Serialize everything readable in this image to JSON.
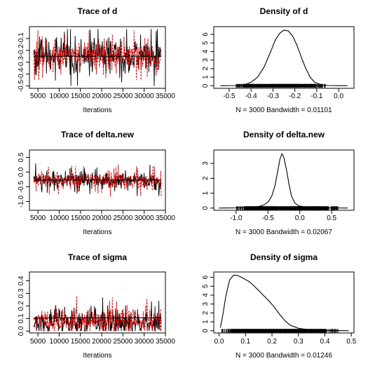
{
  "chart_data": [
    {
      "type": "line",
      "title": "Trace of d",
      "xlabel": "Iterations",
      "ylabel": "",
      "xlim": [
        3000,
        35000
      ],
      "ylim": [
        -0.52,
        0.0
      ],
      "x_ticks": [
        5000,
        10000,
        15000,
        20000,
        25000,
        30000,
        35000
      ],
      "x_tick_labels": [
        "5000",
        "10000",
        "15000",
        "20000",
        "25000",
        "30000",
        "35000"
      ],
      "y_ticks": [
        -0.5,
        -0.4,
        -0.3,
        -0.2,
        -0.1
      ],
      "y_tick_labels": [
        "-0.5",
        "-0.4",
        "-0.3",
        "-0.2",
        "-0.1"
      ],
      "x_range": [
        4000,
        34000
      ],
      "series": [
        {
          "color": "#000000",
          "line_style": "solid",
          "center": -0.25,
          "spread": 0.13,
          "min": -0.5,
          "max": -0.02
        },
        {
          "color": "#e00000",
          "line_style": "dashed",
          "center": -0.25,
          "spread": 0.12,
          "min": -0.45,
          "max": -0.03
        }
      ],
      "smooth_line": {
        "color": "#000000",
        "value": -0.25
      }
    },
    {
      "type": "line",
      "title": "Density of d",
      "xlabel": "N = 3000   Bandwidth = 0.01101",
      "ylabel": "",
      "xlim": [
        -0.57,
        0.07
      ],
      "ylim": [
        -0.3,
        6.9
      ],
      "x_ticks": [
        -0.5,
        -0.4,
        -0.3,
        -0.2,
        -0.1,
        0.0
      ],
      "x_tick_labels": [
        "-0.5",
        "-0.4",
        "-0.3",
        "-0.2",
        "-0.1",
        "0.0"
      ],
      "y_ticks": [
        0,
        1,
        2,
        3,
        4,
        5,
        6
      ],
      "y_tick_labels": [
        "0",
        "1",
        "2",
        "3",
        "4",
        "5",
        "6"
      ],
      "x": [
        -0.54,
        -0.47,
        -0.43,
        -0.4,
        -0.37,
        -0.34,
        -0.31,
        -0.29,
        -0.27,
        -0.25,
        -0.23,
        -0.21,
        -0.19,
        -0.17,
        -0.15,
        -0.13,
        -0.11,
        -0.08,
        -0.05,
        0.04
      ],
      "y": [
        0.0,
        0.03,
        0.12,
        0.4,
        1.0,
        2.2,
        4.0,
        5.3,
        6.1,
        6.5,
        6.4,
        5.8,
        4.7,
        3.3,
        2.0,
        1.0,
        0.4,
        0.12,
        0.03,
        0.0
      ],
      "rug_range": [
        -0.47,
        -0.06
      ]
    },
    {
      "type": "line",
      "title": "Trace of delta.new",
      "xlabel": "Iterations",
      "ylabel": "",
      "xlim": [
        3000,
        35000
      ],
      "ylim": [
        -1.3,
        0.75
      ],
      "x_ticks": [
        5000,
        10000,
        15000,
        20000,
        25000,
        30000,
        35000
      ],
      "x_tick_labels": [
        "5000",
        "10000",
        "15000",
        "20000",
        "25000",
        "30000",
        "35000"
      ],
      "y_ticks": [
        -1.0,
        -0.5,
        0.0,
        0.5
      ],
      "y_tick_labels": [
        "-1.0",
        "-0.5",
        "0.0",
        "0.5"
      ],
      "x_range": [
        4000,
        34000
      ],
      "series": [
        {
          "color": "#000000",
          "line_style": "solid",
          "center": -0.27,
          "spread": 0.26,
          "min": -1.2,
          "max": 0.6
        },
        {
          "color": "#e00000",
          "line_style": "dashed",
          "center": -0.27,
          "spread": 0.26,
          "min": -1.05,
          "max": 0.65
        }
      ],
      "smooth_line": {
        "color": "#000000",
        "value": -0.27
      }
    },
    {
      "type": "line",
      "title": "Density of delta.new",
      "xlabel": "N = 3000   Bandwidth = 0.02067",
      "ylabel": "",
      "xlim": [
        -1.35,
        0.85
      ],
      "ylim": [
        -0.15,
        3.9
      ],
      "x_ticks": [
        -1.0,
        -0.5,
        0.0,
        0.5
      ],
      "x_tick_labels": [
        "-1.0",
        "-0.5",
        "0.0",
        "0.5"
      ],
      "y_ticks": [
        0,
        1,
        2,
        3
      ],
      "y_tick_labels": [
        "0",
        "1",
        "2",
        "3"
      ],
      "x": [
        -1.27,
        -1.0,
        -0.8,
        -0.65,
        -0.57,
        -0.5,
        -0.44,
        -0.39,
        -0.35,
        -0.31,
        -0.28,
        -0.25,
        -0.21,
        -0.17,
        -0.13,
        -0.08,
        -0.02,
        0.1,
        0.3,
        0.75
      ],
      "y": [
        0.0,
        0.01,
        0.04,
        0.1,
        0.2,
        0.4,
        0.8,
        1.5,
        2.4,
        3.3,
        3.65,
        3.4,
        2.6,
        1.6,
        0.8,
        0.35,
        0.15,
        0.05,
        0.02,
        0.0
      ],
      "rug_range": [
        -1.0,
        0.6
      ]
    },
    {
      "type": "line",
      "title": "Trace of sigma",
      "xlabel": "Iterations",
      "ylabel": "",
      "xlim": [
        3000,
        35000
      ],
      "ylim": [
        -0.015,
        0.47
      ],
      "x_ticks": [
        5000,
        10000,
        15000,
        20000,
        25000,
        30000,
        35000
      ],
      "x_tick_labels": [
        "5000",
        "10000",
        "15000",
        "20000",
        "25000",
        "30000",
        "35000"
      ],
      "y_ticks": [
        0.0,
        0.1,
        0.2,
        0.3,
        0.4
      ],
      "y_tick_labels": [
        "0.0",
        "0.1",
        "0.2",
        "0.3",
        "0.4"
      ],
      "x_range": [
        4000,
        34000
      ],
      "series": [
        {
          "color": "#000000",
          "line_style": "solid",
          "center": 0.07,
          "spread": 0.09,
          "min": 0.0,
          "max": 0.43
        },
        {
          "color": "#e00000",
          "line_style": "dashed",
          "center": 0.08,
          "spread": 0.09,
          "min": 0.0,
          "max": 0.44
        }
      ],
      "smooth_line": {
        "color": "#000000",
        "value": 0.105
      }
    },
    {
      "type": "line",
      "title": "Density of sigma",
      "xlabel": "N = 3000   Bandwidth = 0.01246",
      "ylabel": "",
      "xlim": [
        -0.02,
        0.51
      ],
      "ylim": [
        -0.25,
        6.6
      ],
      "x_ticks": [
        0.0,
        0.1,
        0.2,
        0.3,
        0.4,
        0.5
      ],
      "x_tick_labels": [
        "0.0",
        "0.1",
        "0.2",
        "0.3",
        "0.4",
        "0.5"
      ],
      "y_ticks": [
        0,
        1,
        2,
        3,
        4,
        5,
        6
      ],
      "y_tick_labels": [
        "0",
        "1",
        "2",
        "3",
        "4",
        "5",
        "6"
      ],
      "x": [
        0.005,
        0.015,
        0.025,
        0.04,
        0.055,
        0.07,
        0.085,
        0.1,
        0.115,
        0.13,
        0.15,
        0.17,
        0.19,
        0.21,
        0.23,
        0.25,
        0.27,
        0.3,
        0.34,
        0.4,
        0.49
      ],
      "y": [
        0.35,
        1.9,
        3.8,
        5.7,
        6.25,
        6.2,
        6.0,
        5.75,
        5.5,
        5.1,
        4.5,
        3.9,
        3.3,
        2.6,
        1.8,
        1.1,
        0.6,
        0.28,
        0.1,
        0.04,
        0.0
      ],
      "rug_range": [
        0.01,
        0.45
      ]
    }
  ]
}
